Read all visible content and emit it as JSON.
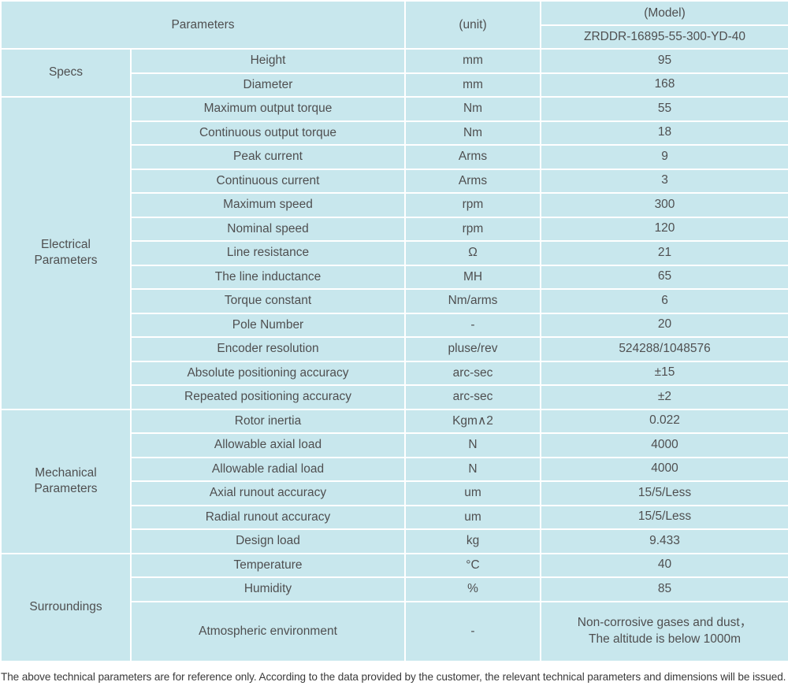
{
  "header": {
    "parameters_label": "Parameters",
    "unit_label": "(unit)",
    "model_label": "(Model)",
    "model_value": "ZRDDR-16895-55-300-YD-40"
  },
  "sections": [
    {
      "name": "Specs",
      "rows": [
        {
          "param": "Height",
          "unit": "mm",
          "value": "95"
        },
        {
          "param": "Diameter",
          "unit": "mm",
          "value": "168"
        }
      ]
    },
    {
      "name": "Electrical\nParameters",
      "rows": [
        {
          "param": "Maximum output torque",
          "unit": "Nm",
          "value": "55"
        },
        {
          "param": "Continuous output torque",
          "unit": "Nm",
          "value": "18"
        },
        {
          "param": "Peak current",
          "unit": "Arms",
          "value": "9"
        },
        {
          "param": "Continuous current",
          "unit": "Arms",
          "value": "3"
        },
        {
          "param": "Maximum speed",
          "unit": "rpm",
          "value": "300"
        },
        {
          "param": "Nominal speed",
          "unit": "rpm",
          "value": "120"
        },
        {
          "param": "Line resistance",
          "unit": "Ω",
          "value": "21"
        },
        {
          "param": "The line inductance",
          "unit": "MH",
          "value": "65"
        },
        {
          "param": "Torque constant",
          "unit": "Nm/arms",
          "value": "6"
        },
        {
          "param": "Pole Number",
          "unit": "-",
          "value": "20"
        },
        {
          "param": "Encoder resolution",
          "unit": "pluse/rev",
          "value": "524288/1048576"
        },
        {
          "param": "Absolute positioning accuracy",
          "unit": "arc-sec",
          "value": "±15"
        },
        {
          "param": "Repeated positioning accuracy",
          "unit": "arc-sec",
          "value": "±2"
        }
      ]
    },
    {
      "name": "Mechanical\nParameters",
      "rows": [
        {
          "param": "Rotor inertia",
          "unit": "Kgm∧2",
          "value": "0.022"
        },
        {
          "param": "Allowable axial load",
          "unit": "N",
          "value": "4000"
        },
        {
          "param": "Allowable radial load",
          "unit": "N",
          "value": "4000"
        },
        {
          "param": "Axial runout accuracy",
          "unit": "um",
          "value": "15/5/Less"
        },
        {
          "param": "Radial runout accuracy",
          "unit": "um",
          "value": "15/5/Less"
        },
        {
          "param": "Design load",
          "unit": "kg",
          "value": "9.433"
        }
      ]
    },
    {
      "name": "Surroundings",
      "rows": [
        {
          "param": "Temperature",
          "unit": "°C",
          "value": "40"
        },
        {
          "param": "Humidity",
          "unit": "%",
          "value": "85"
        },
        {
          "param": "Atmospheric environment",
          "unit": "-",
          "value": "Non-corrosive gases and dust，\nThe altitude is below 1000m",
          "tall": true
        }
      ]
    }
  ],
  "footer": {
    "note": "The above technical parameters are for reference only. According to the data provided by the customer, the relevant technical parameters and dimensions will be issued."
  },
  "colors": {
    "header_bg": "#9cd8d0",
    "row_bg": "#c8e7ed",
    "border": "#ffffff",
    "text": "#4f4f50"
  }
}
